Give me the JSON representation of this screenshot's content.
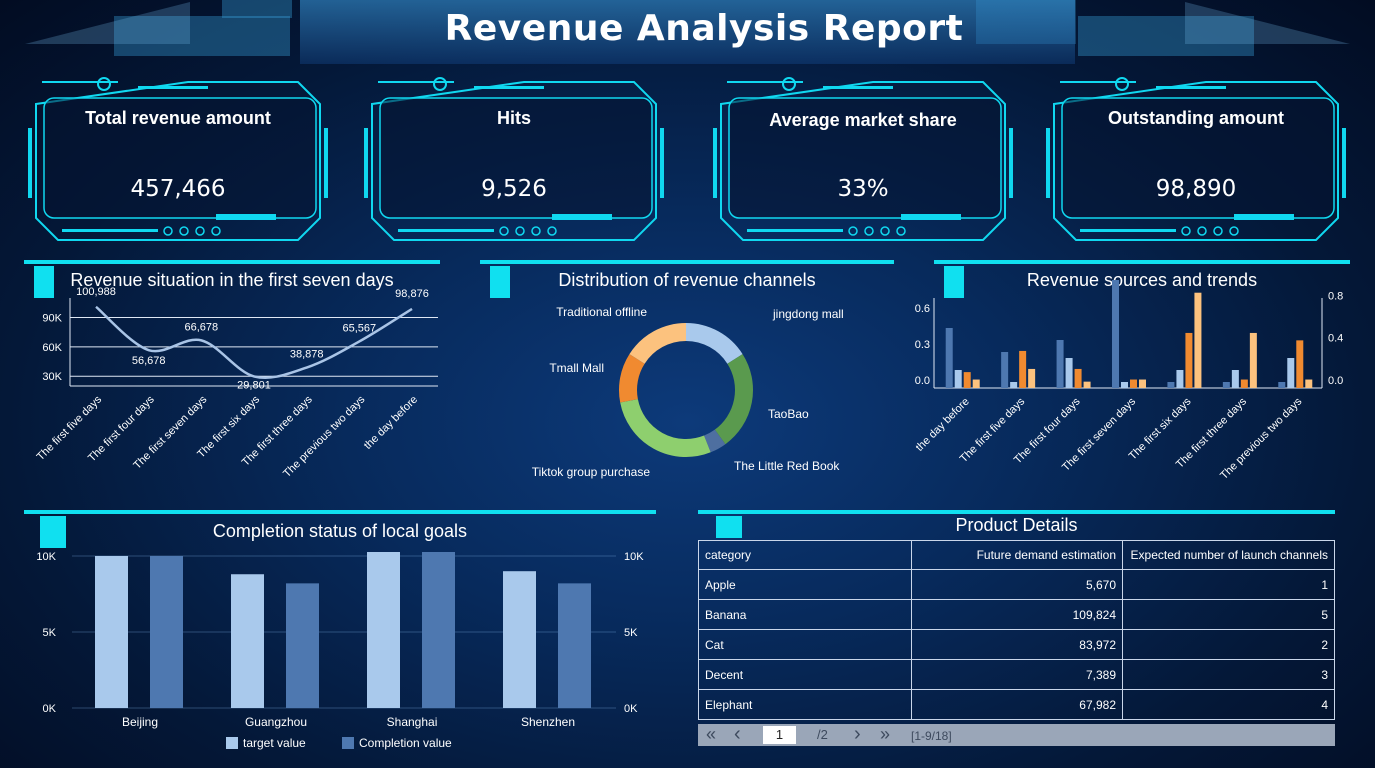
{
  "header": {
    "title": "Revenue Analysis Report"
  },
  "kpis": [
    {
      "label": "Total revenue amount",
      "value": "457,466"
    },
    {
      "label": "Hits",
      "value": "9,526"
    },
    {
      "label": "Average market share",
      "value": "33%"
    },
    {
      "label": "Outstanding amount",
      "value": "98,890"
    }
  ],
  "colors": {
    "accent": "#10e0f0",
    "line": "#a9c4e6",
    "light_blue": "#9ec8ee",
    "mid_blue": "#4e78b0",
    "orange": "#f08a30",
    "light_orange": "#fcc27e",
    "green": "#5a9a4e",
    "light_green": "#8ecf6e"
  },
  "panels": {
    "line_title": "Revenue situation in the first seven days",
    "donut_title": "Distribution of revenue channels",
    "trend_title": "Revenue sources and trends",
    "goals_title": "Completion status of local goals",
    "table_title": "Product Details"
  },
  "chart_data": [
    {
      "type": "line",
      "title": "Revenue situation in the first seven days",
      "categories": [
        "The first five days",
        "The first four days",
        "The first seven days",
        "The first six days",
        "The first three days",
        "The previous two days",
        "the day before"
      ],
      "values": [
        100988,
        56678,
        66678,
        29801,
        38878,
        65567,
        98876
      ],
      "y_ticks": [
        "30K",
        "60K",
        "90K"
      ],
      "ylim": [
        20000,
        110000
      ],
      "grid": true
    },
    {
      "type": "pie",
      "title": "Distribution of revenue channels",
      "labels": [
        "jingdong mall",
        "TaoBao",
        "The Little Red Book",
        "Tiktok group purchase",
        "Tmall Mall",
        "Traditional offline"
      ],
      "values": [
        16,
        24,
        4,
        28,
        12,
        16
      ],
      "colors": [
        "#a9c9ec",
        "#5a9a4e",
        "#4e6fa0",
        "#8ecf6e",
        "#f08a30",
        "#fcc27e"
      ],
      "donut": true
    },
    {
      "type": "bar",
      "title": "Revenue sources and trends",
      "categories": [
        "the day before",
        "The first five days",
        "The first four days",
        "The first seven days",
        "The first six days",
        "The first three days",
        "The previous two days"
      ],
      "y_left_ticks": [
        "0.0",
        "0.3",
        "0.6"
      ],
      "y_right_ticks": [
        "0.0",
        "0.4",
        "0.8"
      ],
      "ylim_left": [
        0,
        0.75
      ],
      "ylim_right": [
        0,
        0.85
      ],
      "series": [
        {
          "values": [
            0.5,
            0.3,
            0.4,
            0.9,
            0.05,
            0.05,
            0.05
          ],
          "axis": "left",
          "color": "#4e78b0"
        },
        {
          "values": [
            0.15,
            0.05,
            0.25,
            0.05,
            0.15,
            0.15,
            0.25
          ],
          "axis": "left",
          "color": "#a9c9ec"
        },
        {
          "values": [
            0.15,
            0.35,
            0.18,
            0.08,
            0.52,
            0.08,
            0.45
          ],
          "axis": "right",
          "color": "#f08a30"
        },
        {
          "values": [
            0.08,
            0.18,
            0.06,
            0.08,
            0.9,
            0.52,
            0.08
          ],
          "axis": "right",
          "color": "#fcc27e"
        }
      ]
    },
    {
      "type": "bar",
      "title": "Completion status of local goals",
      "categories": [
        "Beijing",
        "Guangzhou",
        "Shanghai",
        "Shenzhen"
      ],
      "y_ticks": [
        "0K",
        "5K",
        "10K"
      ],
      "ylim": [
        0,
        10500
      ],
      "series": [
        {
          "name": "target value",
          "values": [
            10000,
            8800,
            10500,
            9000
          ],
          "color": "#a9c9ec"
        },
        {
          "name": "Completion value",
          "values": [
            10000,
            8200,
            10500,
            8200
          ],
          "color": "#4e78b0"
        }
      ],
      "legend": "bottom"
    }
  ],
  "table": {
    "headers": [
      "category",
      "Future demand estimation",
      "Expected number of launch channels"
    ],
    "rows": [
      [
        "Apple",
        "5,670",
        "1"
      ],
      [
        "Banana",
        "109,824",
        "5"
      ],
      [
        "Cat",
        "83,972",
        "2"
      ],
      [
        "Decent",
        "7,389",
        "3"
      ],
      [
        "Elephant",
        "67,982",
        "4"
      ]
    ],
    "pager": {
      "first": "«",
      "prev": "‹",
      "page": "1",
      "total": "/2",
      "next": "›",
      "last": "»",
      "range": "[1-9/18]"
    }
  }
}
